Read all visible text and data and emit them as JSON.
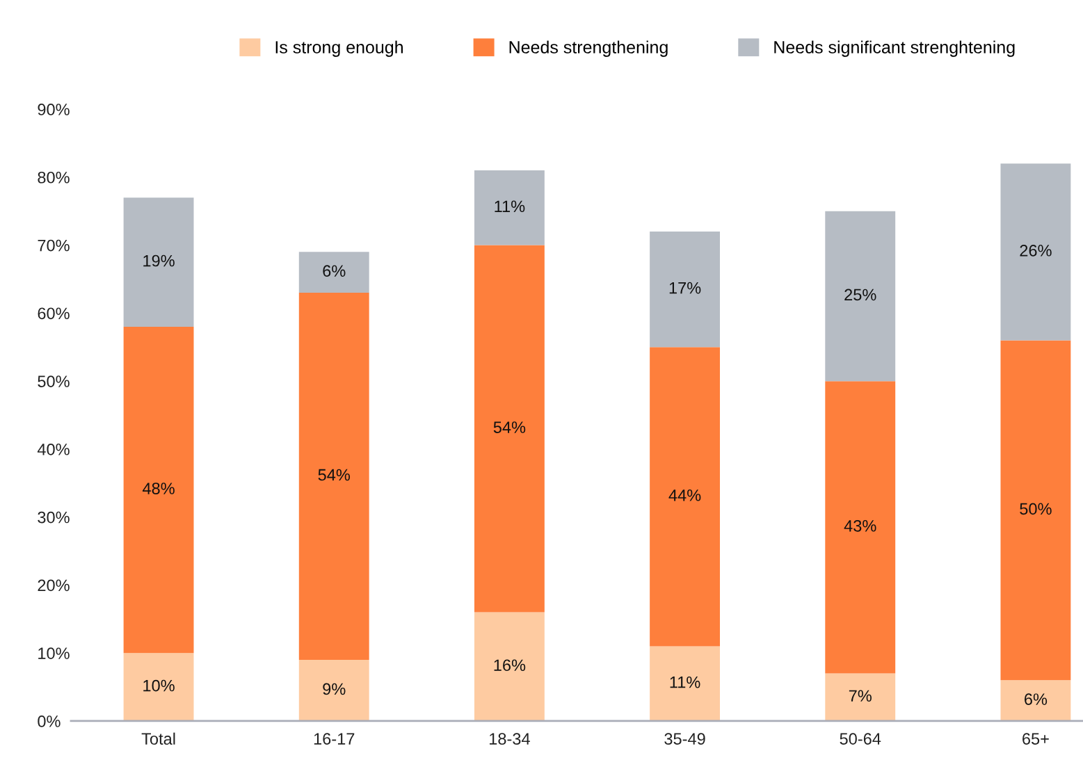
{
  "chart_data": {
    "type": "bar",
    "stacked": true,
    "categories": [
      "Total",
      "16-17",
      "18-34",
      "35-49",
      "50-64",
      "65+"
    ],
    "series": [
      {
        "name": "Is strong enough",
        "color": "#fecba1",
        "values": [
          10,
          9,
          16,
          11,
          7,
          6
        ],
        "value_labels": [
          "10%",
          "9%",
          "16%",
          "11%",
          "7%",
          "6%"
        ]
      },
      {
        "name": "Needs strengthening",
        "color": "#fe7f3c",
        "values": [
          48,
          54,
          54,
          44,
          43,
          50
        ],
        "value_labels": [
          "48%",
          "54%",
          "54%",
          "44%",
          "43%",
          "50%"
        ]
      },
      {
        "name": "Needs significant strenghtening",
        "color": "#b6bcc4",
        "values": [
          19,
          6,
          11,
          17,
          25,
          26
        ],
        "value_labels": [
          "19%",
          "6%",
          "11%",
          "17%",
          "25%",
          "26%"
        ]
      }
    ],
    "ylim": [
      0,
      90
    ],
    "yticks": [
      {
        "value": 0,
        "label": "0%"
      },
      {
        "value": 10,
        "label": "10%"
      },
      {
        "value": 20,
        "label": "20%"
      },
      {
        "value": 30,
        "label": "30%"
      },
      {
        "value": 40,
        "label": "40%"
      },
      {
        "value": 50,
        "label": "50%"
      },
      {
        "value": 60,
        "label": "60%"
      },
      {
        "value": 70,
        "label": "70%"
      },
      {
        "value": 80,
        "label": "80%"
      },
      {
        "value": 90,
        "label": "90%"
      }
    ],
    "grid": false,
    "legend": "top"
  }
}
